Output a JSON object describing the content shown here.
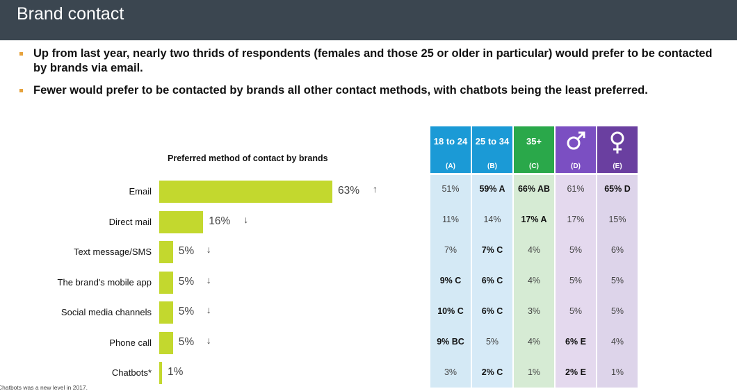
{
  "header": {
    "title": "Brand contact"
  },
  "bullets": [
    "Up from last year, nearly two thrids of respondents (females and those 25 or older in particular) would prefer to be contacted by brands via email.",
    "Fewer would prefer to be contacted by brands all other contact methods, with chatbots being the least preferred."
  ],
  "colors": {
    "header_bg": "#3b4650",
    "bar": "#c3d82e",
    "bullet": "#e6a23c",
    "col_a": "#1b9ad6",
    "col_b": "#1b9ad6",
    "col_c": "#2aa84a",
    "col_d": "#7b4fc2",
    "col_e": "#6a3fa0"
  },
  "chart_data": {
    "type": "bar",
    "orientation": "horizontal",
    "title": "Preferred method of contact by brands",
    "categories": [
      "Email",
      "Direct mail",
      "Text message/SMS",
      "The brand's mobile app",
      "Social media channels",
      "Phone call",
      "Chatbots*"
    ],
    "values": [
      63,
      16,
      5,
      5,
      5,
      5,
      1
    ],
    "labels": [
      "63%",
      "16%",
      "5%",
      "5%",
      "5%",
      "5%",
      "1%"
    ],
    "trend": [
      "up",
      "down",
      "down",
      "down",
      "down",
      "down",
      ""
    ],
    "xlim": [
      0,
      100
    ]
  },
  "table": {
    "columns": [
      {
        "label": "18 to 24",
        "sub": "(A)",
        "icon": ""
      },
      {
        "label": "25 to 34",
        "sub": "(B)",
        "icon": ""
      },
      {
        "label": "35+",
        "sub": "(C)",
        "icon": ""
      },
      {
        "label": "",
        "sub": "(D)",
        "icon": "male-symbol-icon"
      },
      {
        "label": "",
        "sub": "(E)",
        "icon": "female-symbol-icon"
      }
    ],
    "rows": [
      [
        {
          "v": "51%",
          "b": false
        },
        {
          "v": "59% A",
          "b": true
        },
        {
          "v": "66% AB",
          "b": true
        },
        {
          "v": "61%",
          "b": false
        },
        {
          "v": "65% D",
          "b": true
        }
      ],
      [
        {
          "v": "11%",
          "b": false
        },
        {
          "v": "14%",
          "b": false
        },
        {
          "v": "17% A",
          "b": true
        },
        {
          "v": "17%",
          "b": false
        },
        {
          "v": "15%",
          "b": false
        }
      ],
      [
        {
          "v": "7%",
          "b": false
        },
        {
          "v": "7% C",
          "b": true
        },
        {
          "v": "4%",
          "b": false
        },
        {
          "v": "5%",
          "b": false
        },
        {
          "v": "6%",
          "b": false
        }
      ],
      [
        {
          "v": "9% C",
          "b": true
        },
        {
          "v": "6% C",
          "b": true
        },
        {
          "v": "4%",
          "b": false
        },
        {
          "v": "5%",
          "b": false
        },
        {
          "v": "5%",
          "b": false
        }
      ],
      [
        {
          "v": "10% C",
          "b": true
        },
        {
          "v": "6% C",
          "b": true
        },
        {
          "v": "3%",
          "b": false
        },
        {
          "v": "5%",
          "b": false
        },
        {
          "v": "5%",
          "b": false
        }
      ],
      [
        {
          "v": "9% BC",
          "b": true
        },
        {
          "v": "5%",
          "b": false
        },
        {
          "v": "4%",
          "b": false
        },
        {
          "v": "6% E",
          "b": true
        },
        {
          "v": "4%",
          "b": false
        }
      ],
      [
        {
          "v": "3%",
          "b": false
        },
        {
          "v": "2% C",
          "b": true
        },
        {
          "v": "1%",
          "b": false
        },
        {
          "v": "2% E",
          "b": true
        },
        {
          "v": "1%",
          "b": false
        }
      ]
    ]
  },
  "footnote": "Chatbots was a new level in 2017."
}
